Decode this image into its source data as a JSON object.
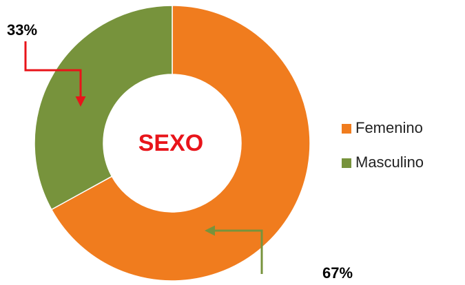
{
  "chart_data": {
    "type": "donut",
    "title": "SEXO",
    "categories": [
      "Femenino",
      "Masculino"
    ],
    "values": [
      67,
      33
    ],
    "value_labels": [
      "67%",
      "33%"
    ],
    "colors": [
      "#f07c1e",
      "#77933c"
    ],
    "legend": "right"
  }
}
